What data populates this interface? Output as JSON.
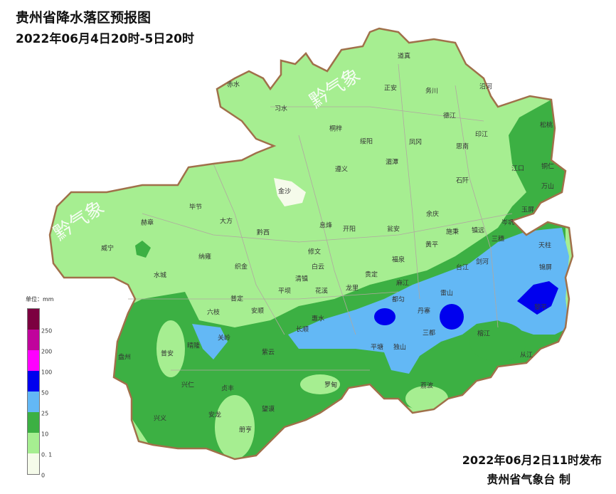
{
  "header": {
    "title": "贵州省降水落区预报图",
    "period": "2022年06月4日20时-5日20时"
  },
  "footer": {
    "issued": "2022年06月2日11时发布",
    "org": "贵州省气象台 制"
  },
  "watermark": "黔气象",
  "legend": {
    "unit": "单位：mm",
    "ticks": [
      "0",
      "0. 1",
      "10",
      "25",
      "50",
      "100",
      "200",
      "250"
    ],
    "colors": [
      "#f5fbea",
      "#a6ee91",
      "#3cb043",
      "#63b8f5",
      "#0000ee",
      "#ff00ff",
      "#c0049c",
      "#7c0040"
    ]
  },
  "map": {
    "colors": {
      "border": "#a0704a",
      "county": "#b0a8a0",
      "light_green": "#a6ee91",
      "green": "#3cb043",
      "light_blue": "#63b8f5",
      "blue": "#0000ee",
      "none": "#f5fbea"
    },
    "places": [
      "道真",
      "赤水",
      "正安",
      "务川",
      "沿河",
      "习水",
      "松桃",
      "桐梓",
      "德江",
      "绥阳",
      "凤冈",
      "印江",
      "思南",
      "湄潭",
      "遵义",
      "江口",
      "铜仁",
      "石阡",
      "万山",
      "金沙",
      "毕节",
      "赫章",
      "大方",
      "黔西",
      "息烽",
      "开阳",
      "瓮安",
      "余庆",
      "玉屏",
      "岑巩",
      "施秉",
      "镇远",
      "三穗",
      "威宁",
      "纳雍",
      "织金",
      "修文",
      "黄平",
      "天柱",
      "白云",
      "福泉",
      "剑河",
      "台江",
      "锦屏",
      "水城",
      "清镇",
      "贵定",
      "平坝",
      "花溪",
      "龙里",
      "麻江",
      "雷山",
      "黎平",
      "普定",
      "安顺",
      "六枝",
      "都匀",
      "惠水",
      "长顺",
      "丹寨",
      "三都",
      "关岭",
      "平塘",
      "独山",
      "榕江",
      "从江",
      "盘州",
      "普安",
      "晴隆",
      "紫云",
      "兴仁",
      "贞丰",
      "罗甸",
      "荔波",
      "兴义",
      "安龙",
      "望谟",
      "册亨"
    ]
  }
}
